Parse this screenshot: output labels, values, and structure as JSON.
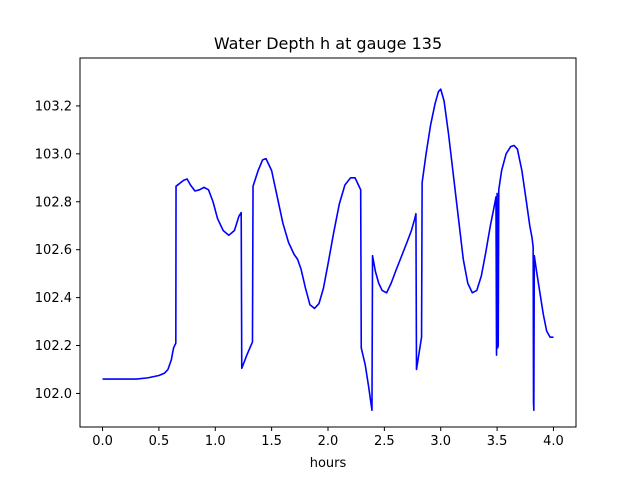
{
  "chart_data": {
    "type": "line",
    "title": "Water Depth h at gauge 135",
    "xlabel": "hours",
    "ylabel": "",
    "xlim": [
      -0.2,
      4.2
    ],
    "ylim": [
      101.86,
      103.4
    ],
    "xticks": [
      0.0,
      0.5,
      1.0,
      1.5,
      2.0,
      2.5,
      3.0,
      3.5,
      4.0
    ],
    "xtick_labels": [
      "0.0",
      "0.5",
      "1.0",
      "1.5",
      "2.0",
      "2.5",
      "3.0",
      "3.5",
      "4.0"
    ],
    "yticks": [
      102.0,
      102.2,
      102.4,
      102.6,
      102.8,
      103.0,
      103.2
    ],
    "ytick_labels": [
      "102.0",
      "102.2",
      "102.4",
      "102.6",
      "102.8",
      "103.0",
      "103.2"
    ],
    "grid": false,
    "series": [
      {
        "color": "#0000ff",
        "points": [
          [
            0.0,
            102.06
          ],
          [
            0.2,
            102.06
          ],
          [
            0.3,
            102.06
          ],
          [
            0.4,
            102.065
          ],
          [
            0.5,
            102.075
          ],
          [
            0.55,
            102.085
          ],
          [
            0.58,
            102.1
          ],
          [
            0.61,
            102.14
          ],
          [
            0.63,
            102.19
          ],
          [
            0.65,
            102.21
          ],
          [
            0.652,
            102.865
          ],
          [
            0.68,
            102.875
          ],
          [
            0.72,
            102.89
          ],
          [
            0.75,
            102.895
          ],
          [
            0.78,
            102.87
          ],
          [
            0.82,
            102.845
          ],
          [
            0.86,
            102.85
          ],
          [
            0.9,
            102.86
          ],
          [
            0.94,
            102.85
          ],
          [
            0.98,
            102.8
          ],
          [
            1.02,
            102.73
          ],
          [
            1.07,
            102.68
          ],
          [
            1.12,
            102.66
          ],
          [
            1.17,
            102.68
          ],
          [
            1.21,
            102.74
          ],
          [
            1.23,
            102.755
          ],
          [
            1.235,
            102.105
          ],
          [
            1.28,
            102.16
          ],
          [
            1.33,
            102.215
          ],
          [
            1.335,
            102.865
          ],
          [
            1.38,
            102.93
          ],
          [
            1.42,
            102.975
          ],
          [
            1.45,
            102.98
          ],
          [
            1.5,
            102.93
          ],
          [
            1.55,
            102.82
          ],
          [
            1.6,
            102.71
          ],
          [
            1.65,
            102.63
          ],
          [
            1.7,
            102.58
          ],
          [
            1.73,
            102.56
          ],
          [
            1.76,
            102.52
          ],
          [
            1.8,
            102.44
          ],
          [
            1.84,
            102.37
          ],
          [
            1.88,
            102.355
          ],
          [
            1.92,
            102.375
          ],
          [
            1.96,
            102.44
          ],
          [
            2.0,
            102.54
          ],
          [
            2.05,
            102.67
          ],
          [
            2.1,
            102.79
          ],
          [
            2.15,
            102.87
          ],
          [
            2.2,
            102.9
          ],
          [
            2.24,
            102.9
          ],
          [
            2.27,
            102.87
          ],
          [
            2.29,
            102.85
          ],
          [
            2.295,
            102.19
          ],
          [
            2.33,
            102.12
          ],
          [
            2.36,
            102.03
          ],
          [
            2.39,
            101.93
          ],
          [
            2.395,
            102.575
          ],
          [
            2.42,
            102.51
          ],
          [
            2.45,
            102.46
          ],
          [
            2.48,
            102.43
          ],
          [
            2.52,
            102.42
          ],
          [
            2.56,
            102.46
          ],
          [
            2.6,
            102.51
          ],
          [
            2.65,
            102.57
          ],
          [
            2.7,
            102.63
          ],
          [
            2.74,
            102.68
          ],
          [
            2.77,
            102.73
          ],
          [
            2.78,
            102.75
          ],
          [
            2.785,
            102.1
          ],
          [
            2.83,
            102.235
          ],
          [
            2.835,
            102.88
          ],
          [
            2.87,
            103.0
          ],
          [
            2.91,
            103.12
          ],
          [
            2.95,
            103.21
          ],
          [
            2.98,
            103.26
          ],
          [
            3.0,
            103.27
          ],
          [
            3.03,
            103.22
          ],
          [
            3.07,
            103.08
          ],
          [
            3.12,
            102.88
          ],
          [
            3.17,
            102.68
          ],
          [
            3.2,
            102.56
          ],
          [
            3.24,
            102.46
          ],
          [
            3.28,
            102.42
          ],
          [
            3.32,
            102.43
          ],
          [
            3.36,
            102.49
          ],
          [
            3.4,
            102.59
          ],
          [
            3.44,
            102.7
          ],
          [
            3.47,
            102.77
          ],
          [
            3.49,
            102.82
          ],
          [
            3.495,
            102.16
          ],
          [
            3.5,
            102.835
          ],
          [
            3.505,
            102.19
          ],
          [
            3.51,
            102.2
          ],
          [
            3.515,
            102.85
          ],
          [
            3.54,
            102.93
          ],
          [
            3.58,
            103.0
          ],
          [
            3.62,
            103.03
          ],
          [
            3.65,
            103.035
          ],
          [
            3.68,
            103.02
          ],
          [
            3.72,
            102.93
          ],
          [
            3.76,
            102.8
          ],
          [
            3.79,
            102.7
          ],
          [
            3.81,
            102.65
          ],
          [
            3.82,
            102.61
          ],
          [
            3.823,
            101.96
          ],
          [
            3.826,
            101.93
          ],
          [
            3.83,
            102.575
          ],
          [
            3.85,
            102.51
          ],
          [
            3.88,
            102.42
          ],
          [
            3.91,
            102.33
          ],
          [
            3.94,
            102.26
          ],
          [
            3.97,
            102.235
          ],
          [
            4.0,
            102.235
          ]
        ]
      }
    ]
  }
}
